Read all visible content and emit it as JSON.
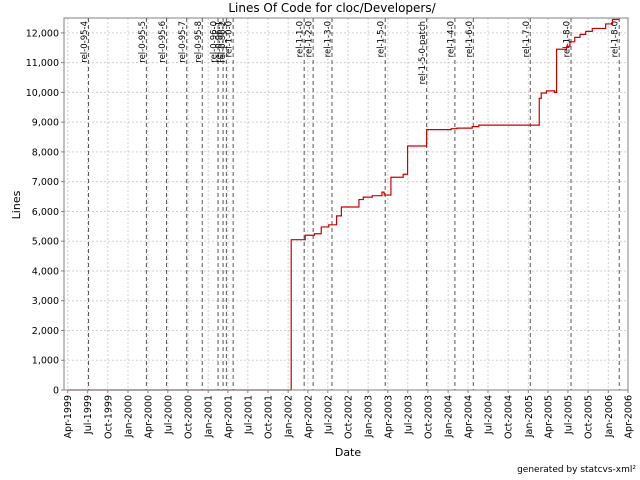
{
  "chart_data": {
    "type": "line",
    "title": "Lines Of Code for cloc/Developers/",
    "xlabel": "Date",
    "ylabel": "Lines",
    "credit": "generated by statcvs-xml²",
    "ylim": [
      0,
      12500
    ],
    "xlim": [
      "1999-03-15",
      "2006-04-01"
    ],
    "y_ticks": [
      0,
      1000,
      2000,
      3000,
      4000,
      5000,
      6000,
      7000,
      8000,
      9000,
      10000,
      11000,
      12000
    ],
    "y_tick_labels": [
      "0",
      "1,000",
      "2,000",
      "3,000",
      "4,000",
      "5,000",
      "6,000",
      "7,000",
      "8,000",
      "9,000",
      "10,000",
      "11,000",
      "12,000"
    ],
    "x_ticks": [
      "1999-04-01",
      "1999-07-01",
      "1999-10-01",
      "2000-01-01",
      "2000-04-01",
      "2000-07-01",
      "2000-10-01",
      "2001-01-01",
      "2001-04-01",
      "2001-07-01",
      "2001-10-01",
      "2002-01-01",
      "2002-04-01",
      "2002-07-01",
      "2002-10-01",
      "2003-01-01",
      "2003-04-01",
      "2003-07-01",
      "2003-10-01",
      "2004-01-01",
      "2004-04-01",
      "2004-07-01",
      "2004-10-01",
      "2005-01-01",
      "2005-04-01",
      "2005-07-01",
      "2005-10-01",
      "2006-01-01",
      "2006-04-01"
    ],
    "x_tick_labels": [
      "Apr-1999",
      "Jul-1999",
      "Oct-1999",
      "Jan-2000",
      "Apr-2000",
      "Jul-2000",
      "Oct-2000",
      "Jan-2001",
      "Apr-2001",
      "Jul-2001",
      "Oct-2001",
      "Jan-2002",
      "Apr-2002",
      "Jul-2002",
      "Oct-2002",
      "Jan-2003",
      "Apr-2003",
      "Jul-2003",
      "Oct-2003",
      "Jan-2004",
      "Apr-2004",
      "Jul-2004",
      "Oct-2004",
      "Jan-2005",
      "Apr-2005",
      "Jul-2005",
      "Oct-2005",
      "Jan-2006",
      "Apr-2006"
    ],
    "grid": true,
    "series": [
      {
        "color": "#cc0000",
        "step": true,
        "points": [
          [
            "1999-04-01",
            0
          ],
          [
            "2002-01-15",
            0
          ],
          [
            "2002-01-15",
            5050
          ],
          [
            "2002-03-20",
            5050
          ],
          [
            "2002-03-20",
            5200
          ],
          [
            "2002-05-01",
            5200
          ],
          [
            "2002-05-01",
            5250
          ],
          [
            "2002-06-01",
            5250
          ],
          [
            "2002-06-01",
            5480
          ],
          [
            "2002-07-05",
            5480
          ],
          [
            "2002-07-05",
            5550
          ],
          [
            "2002-08-10",
            5550
          ],
          [
            "2002-08-10",
            5850
          ],
          [
            "2002-09-01",
            5850
          ],
          [
            "2002-09-01",
            6150
          ],
          [
            "2002-11-20",
            6150
          ],
          [
            "2002-11-20",
            6400
          ],
          [
            "2002-12-10",
            6400
          ],
          [
            "2002-12-10",
            6480
          ],
          [
            "2003-01-20",
            6480
          ],
          [
            "2003-01-20",
            6530
          ],
          [
            "2003-03-05",
            6530
          ],
          [
            "2003-03-05",
            6650
          ],
          [
            "2003-03-15",
            6650
          ],
          [
            "2003-03-15",
            6550
          ],
          [
            "2003-04-15",
            6550
          ],
          [
            "2003-04-15",
            7150
          ],
          [
            "2003-06-10",
            7150
          ],
          [
            "2003-06-10",
            7250
          ],
          [
            "2003-06-30",
            7250
          ],
          [
            "2003-06-30",
            8200
          ],
          [
            "2003-09-25",
            8200
          ],
          [
            "2003-09-25",
            8750
          ],
          [
            "2004-01-15",
            8750
          ],
          [
            "2004-01-15",
            8780
          ],
          [
            "2004-02-10",
            8780
          ],
          [
            "2004-02-10",
            8800
          ],
          [
            "2004-04-20",
            8800
          ],
          [
            "2004-04-20",
            8850
          ],
          [
            "2004-05-20",
            8850
          ],
          [
            "2004-05-20",
            8900
          ],
          [
            "2005-02-20",
            8900
          ],
          [
            "2005-02-20",
            9800
          ],
          [
            "2005-03-01",
            9800
          ],
          [
            "2005-03-01",
            9980
          ],
          [
            "2005-03-25",
            9980
          ],
          [
            "2005-03-25",
            10050
          ],
          [
            "2005-05-01",
            10050
          ],
          [
            "2005-05-01",
            10000
          ],
          [
            "2005-05-10",
            10000
          ],
          [
            "2005-05-10",
            11450
          ],
          [
            "2005-06-25",
            11450
          ],
          [
            "2005-06-25",
            11550
          ],
          [
            "2005-07-10",
            11550
          ],
          [
            "2005-07-10",
            11700
          ],
          [
            "2005-08-01",
            11700
          ],
          [
            "2005-08-01",
            11850
          ],
          [
            "2005-08-25",
            11850
          ],
          [
            "2005-08-25",
            11950
          ],
          [
            "2005-09-20",
            11950
          ],
          [
            "2005-09-20",
            12050
          ],
          [
            "2005-10-20",
            12050
          ],
          [
            "2005-10-20",
            12150
          ],
          [
            "2005-12-20",
            12150
          ],
          [
            "2005-12-20",
            12300
          ],
          [
            "2006-01-20",
            12300
          ],
          [
            "2006-01-20",
            12450
          ],
          [
            "2006-02-20",
            12450
          ]
        ]
      }
    ],
    "markers": [
      {
        "label": "rel-0-95-4",
        "date": "1999-07-05"
      },
      {
        "label": "rel-0-95-5",
        "date": "2000-03-25"
      },
      {
        "label": "rel-0-95-6",
        "date": "2000-06-25"
      },
      {
        "label": "rel-0-95-7",
        "date": "2000-09-25"
      },
      {
        "label": "rel-0-95-8",
        "date": "2000-12-05"
      },
      {
        "label": "rel-0-96-0",
        "date": "2001-02-15"
      },
      {
        "label": "rel-0-96-1",
        "date": "2001-03-10"
      },
      {
        "label": "rel-0-96-2",
        "date": "2001-03-25"
      },
      {
        "label": "rel-1-0-0",
        "date": "2001-04-25"
      },
      {
        "label": "rel-1-1-0",
        "date": "2002-03-15"
      },
      {
        "label": "rel-1-2-0",
        "date": "2002-04-25"
      },
      {
        "label": "rel-1-3-0",
        "date": "2002-07-20"
      },
      {
        "label": "rel-1-5-0",
        "date": "2003-03-20"
      },
      {
        "label": "rel-1-5-0-patch",
        "date": "2003-09-25"
      },
      {
        "label": "rel-1-4-0",
        "date": "2004-02-01"
      },
      {
        "label": "rel-1-6-0",
        "date": "2004-04-25"
      },
      {
        "label": "rel-1-7-0",
        "date": "2005-01-10"
      },
      {
        "label": "rel-1-8-0",
        "date": "2005-07-15"
      },
      {
        "label": "rel-1-8-0",
        "date": "2006-02-20"
      }
    ]
  }
}
